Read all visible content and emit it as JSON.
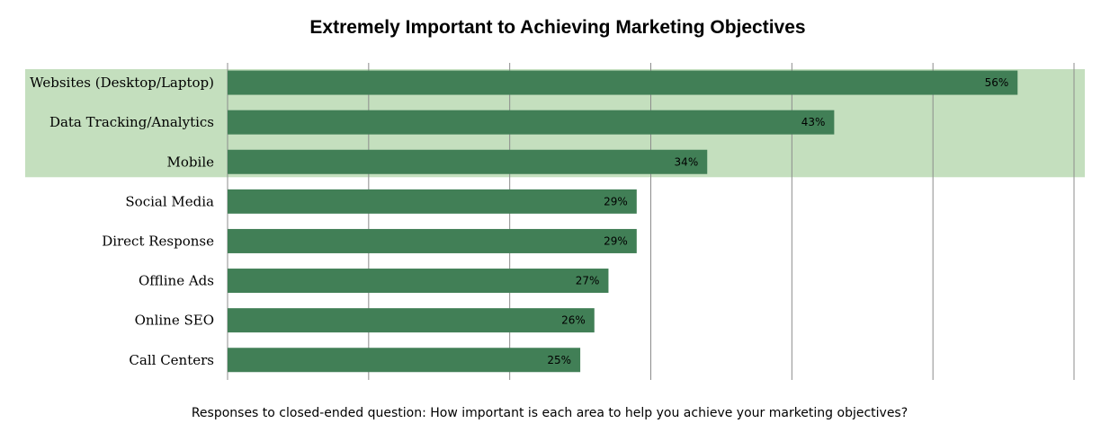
{
  "chart_data": {
    "type": "bar",
    "orientation": "horizontal",
    "title": "Extremely Important to Achieving Marketing Objectives",
    "caption": "Responses to closed-ended question: How important is each area to help you achieve your marketing objectives?",
    "categories": [
      "Websites (Desktop/Laptop)",
      "Data Tracking/Analytics",
      "Mobile",
      "Social Media",
      "Direct Response",
      "Offline Ads",
      "Online SEO",
      "Call Centers"
    ],
    "values": [
      56,
      43,
      34,
      29,
      29,
      27,
      26,
      25
    ],
    "value_labels": [
      "56%",
      "43%",
      "34%",
      "29%",
      "29%",
      "27%",
      "26%",
      "25%"
    ],
    "value_unit": "%",
    "xlim": [
      0,
      60
    ],
    "gridline_step": 10,
    "grid": true,
    "highlighted_categories": [
      "Websites (Desktop/Laptop)",
      "Data Tracking/Analytics",
      "Mobile"
    ],
    "colors": {
      "bar": "#417F56",
      "highlight": "#C4DFBE",
      "grid": "#8C8C8C"
    }
  }
}
